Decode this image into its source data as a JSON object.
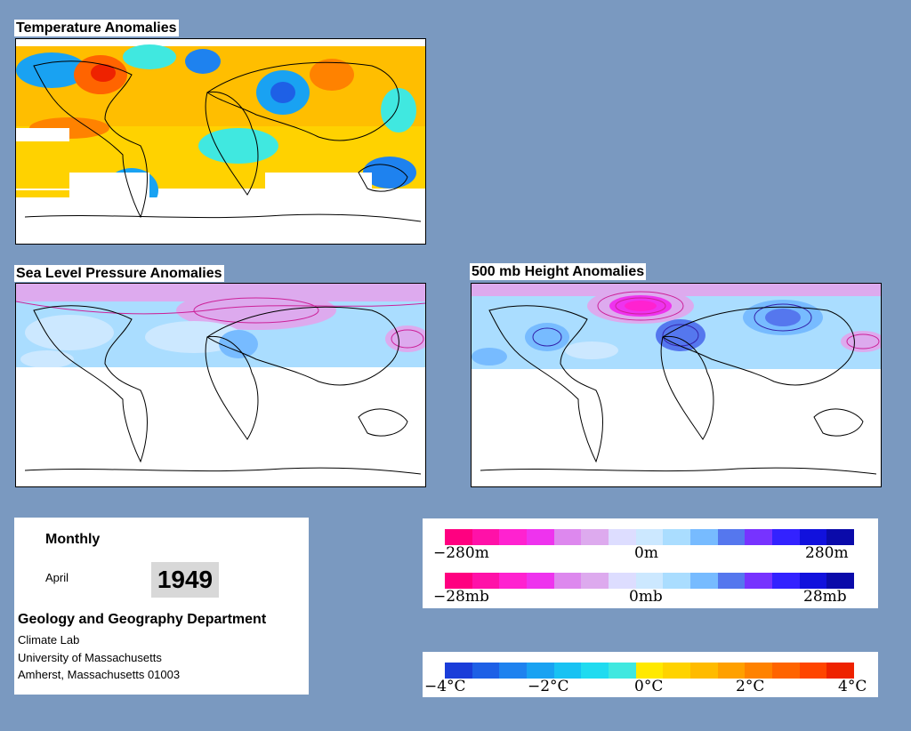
{
  "maps": {
    "temperature_title": "Temperature Anomalies",
    "slp_title": "Sea Level Pressure Anomalies",
    "height_title": "500 mb Height Anomalies"
  },
  "info": {
    "period": "Monthly",
    "month": "April",
    "year": "1949",
    "department": "Geology and Geography Department",
    "lab": "Climate Lab",
    "university": "University of Massachusetts",
    "address": "Amherst, Massachusetts 01003"
  },
  "legends": {
    "height": {
      "min": "−280m",
      "mid": "0m",
      "max": "280m"
    },
    "pressure": {
      "min": "−28mb",
      "mid": "0mb",
      "max": "28mb"
    },
    "temperature": {
      "t1": "−4°C",
      "t2": "−2°C",
      "t3": "0°C",
      "t4": "2°C",
      "t5": "4°C"
    }
  },
  "colors": {
    "background": "#7a99c0",
    "anomaly_scale": [
      "#ff0080",
      "#ff11a8",
      "#ff22d0",
      "#ee33ee",
      "#dd88ee",
      "#ddaaee",
      "#ddddff",
      "#cce8ff",
      "#aaddff",
      "#77bbff",
      "#5577ee",
      "#7733ff",
      "#3322ff",
      "#1111dd",
      "#0a0aaa"
    ],
    "temperature_scale": [
      "#1a3dd9",
      "#1e60e6",
      "#1e82ef",
      "#19a2f2",
      "#18c2f3",
      "#20dbf0",
      "#40e8e0",
      "#ffe900",
      "#ffd300",
      "#ffbb00",
      "#ffa000",
      "#ff8200",
      "#ff6400",
      "#ff4500",
      "#ee2200"
    ]
  }
}
